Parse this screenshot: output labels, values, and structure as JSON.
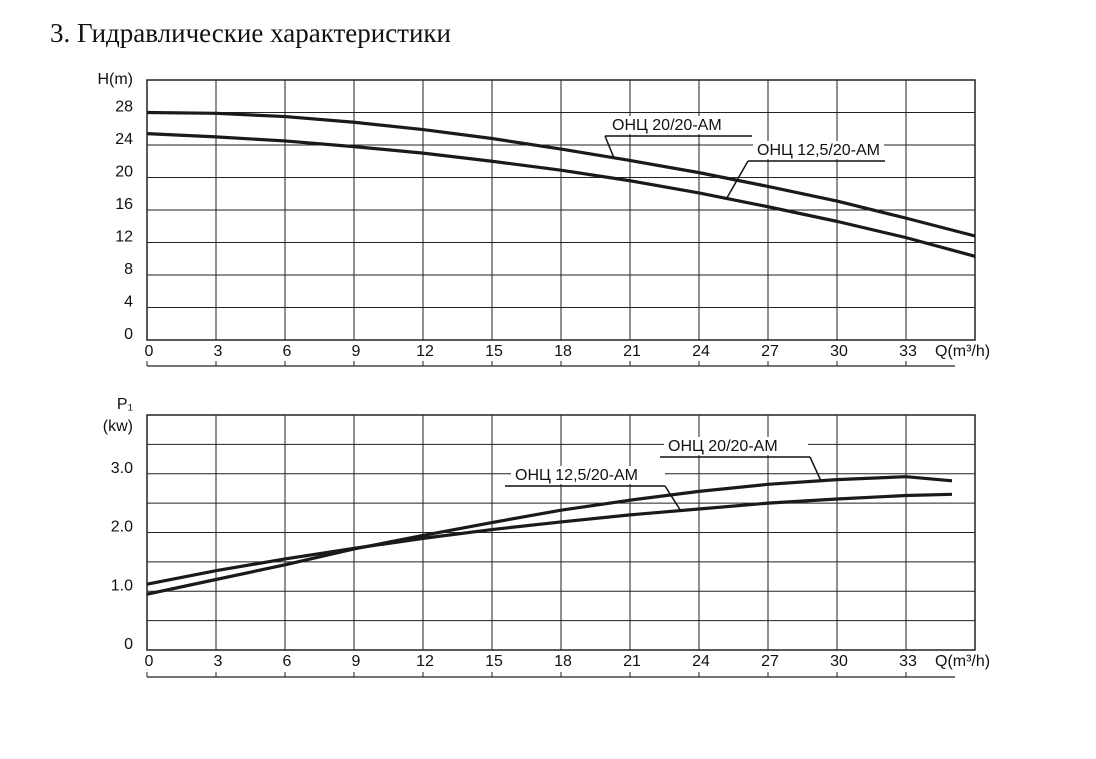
{
  "page_title": "3. Гидравлические характеристики",
  "chart_data": [
    {
      "type": "line",
      "ylabel": [
        "H(m)"
      ],
      "xlabel": "Q(m³/h)",
      "x": [
        0,
        3,
        6,
        9,
        12,
        15,
        18,
        21,
        24,
        27,
        30,
        33,
        36
      ],
      "series": [
        {
          "name": "ОНЦ 20/20-AM",
          "color": "#1a1a1a",
          "values": [
            28,
            27.9,
            27.5,
            26.8,
            25.9,
            24.8,
            23.5,
            22.1,
            20.6,
            18.9,
            17.1,
            15.0,
            12.8
          ]
        },
        {
          "name": "ОНЦ 12,5/20-AM",
          "color": "#1a1a1a",
          "values": [
            25.4,
            25.0,
            24.5,
            23.8,
            23.0,
            22.0,
            20.9,
            19.6,
            18.1,
            16.4,
            14.6,
            12.6,
            10.3
          ]
        }
      ],
      "xlim": [
        0,
        36
      ],
      "xticks": [
        0,
        3,
        6,
        9,
        12,
        15,
        18,
        21,
        24,
        27,
        30,
        33
      ],
      "ylim": [
        0,
        32
      ],
      "yticks": [
        0,
        4,
        8,
        12,
        16,
        20,
        24,
        28
      ],
      "grid": true
    },
    {
      "type": "line",
      "ylabel": [
        "P₁",
        "(kw)"
      ],
      "xlabel": "Q(m³/h)",
      "x": [
        0,
        3,
        6,
        9,
        12,
        15,
        18,
        21,
        24,
        27,
        30,
        33,
        35
      ],
      "series": [
        {
          "name": "ОНЦ 20/20-AM",
          "color": "#1a1a1a",
          "values": [
            0.95,
            1.2,
            1.45,
            1.72,
            1.95,
            2.17,
            2.38,
            2.55,
            2.7,
            2.82,
            2.9,
            2.95,
            2.88
          ]
        },
        {
          "name": "ОНЦ 12,5/20-AM",
          "color": "#1a1a1a",
          "values": [
            1.12,
            1.35,
            1.55,
            1.73,
            1.9,
            2.05,
            2.18,
            2.3,
            2.4,
            2.5,
            2.57,
            2.63,
            2.65
          ]
        }
      ],
      "xlim": [
        0,
        36
      ],
      "xticks": [
        0,
        3,
        6,
        9,
        12,
        15,
        18,
        21,
        24,
        27,
        30,
        33
      ],
      "ylim": [
        0,
        4
      ],
      "yticks": [
        0,
        {
          "value": 1,
          "label": "1.0"
        },
        {
          "value": 2,
          "label": "2.0"
        },
        {
          "value": 3,
          "label": "3.0"
        }
      ],
      "minor_yticks": [
        0.5,
        1.5,
        2.5,
        3.5
      ],
      "grid": true
    }
  ]
}
